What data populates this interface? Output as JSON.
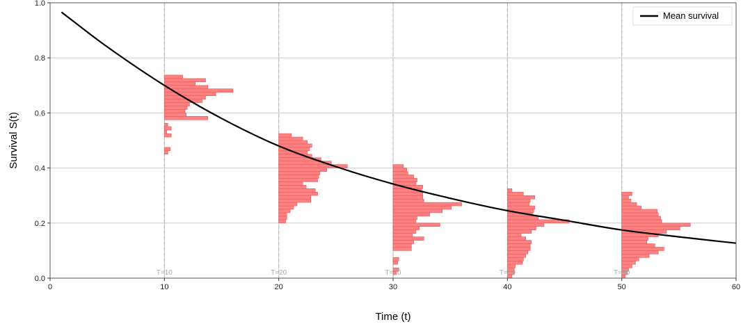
{
  "chart_data": {
    "type": "line",
    "xlabel": "Time (t)",
    "ylabel": "Survival S(t)",
    "xlim": [
      0,
      60
    ],
    "ylim": [
      0,
      1.0
    ],
    "x_ticks": [
      "0",
      "10",
      "20",
      "30",
      "40",
      "50",
      "60"
    ],
    "y_ticks": [
      "0.0",
      "0.2",
      "0.4",
      "0.6",
      "0.8",
      "1.0"
    ],
    "grid": true,
    "legend": {
      "position": "top-right",
      "entries": [
        "Mean survival"
      ]
    },
    "colors": {
      "mean_line": "#000000",
      "histogram_fill": "#ff8080",
      "histogram_edge": "#d96060",
      "grid": "#cccccc",
      "time_marker": "#bbbbbb"
    },
    "mean_survival": {
      "name": "Mean survival",
      "x": [
        1,
        5,
        10,
        15,
        20,
        25,
        30,
        35,
        40,
        45,
        50,
        55,
        60
      ],
      "y": [
        0.966,
        0.84,
        0.7,
        0.58,
        0.48,
        0.405,
        0.342,
        0.29,
        0.245,
        0.21,
        0.175,
        0.15,
        0.127
      ]
    },
    "histograms": [
      {
        "label": "T=10",
        "t": 10,
        "y_min": 0.45,
        "bin_width": 0.0125,
        "widths": [
          0.3,
          0.5,
          0,
          0,
          0,
          0.6,
          0.2,
          0.6,
          0.3,
          0,
          3.8,
          1.9,
          1.8,
          2.0,
          2.2,
          3.3,
          3.6,
          4.5,
          6.0,
          3.8,
          2.7,
          3.6,
          1.6
        ]
      },
      {
        "label": "T=20",
        "t": 20,
        "y_min": 0.2,
        "bin_width": 0.0125,
        "widths": [
          0.6,
          0.7,
          0.7,
          1.0,
          1.3,
          1.6,
          2.8,
          2.8,
          3.4,
          3.2,
          2.4,
          2.1,
          3.4,
          3.5,
          3.6,
          4.2,
          6.0,
          4.6,
          3.7,
          2.9,
          2.5,
          2.7,
          2.9,
          2.5,
          2.1,
          1.1
        ]
      },
      {
        "label": "T=30",
        "t": 30,
        "y_min": 0.0,
        "bin_width": 0.0125,
        "widths": [
          0,
          0.3,
          0.5,
          0,
          0.4,
          0.5,
          0,
          0,
          1.6,
          1.6,
          1.8,
          2.7,
          1.7,
          2.0,
          2.3,
          4.1,
          2.0,
          2.1,
          3.2,
          4.3,
          5.1,
          6.0,
          2.7,
          2.6,
          2.6,
          2.5,
          2.6,
          2.0,
          2.1,
          1.8,
          1.3,
          1.2,
          0.9
        ]
      },
      {
        "label": "T=40",
        "t": 40,
        "y_min": 0.0,
        "bin_width": 0.0125,
        "widths": [
          0.4,
          0.6,
          0.6,
          0.7,
          1.3,
          1.4,
          1.6,
          1.8,
          2.0,
          2.0,
          2.1,
          1.6,
          1.2,
          2.1,
          2.5,
          3.2,
          5.4,
          2.7,
          2.2,
          2.3,
          2.4,
          1.9,
          2.0,
          2.4,
          1.4,
          0.4
        ]
      },
      {
        "label": "T=50",
        "t": 50,
        "y_min": 0.0,
        "bin_width": 0.0125,
        "widths": [
          0.3,
          0.5,
          0.6,
          0.9,
          1.2,
          1.5,
          2.4,
          3.2,
          3.7,
          2.9,
          2.2,
          2.3,
          3.2,
          3.9,
          5.1,
          6.0,
          3.5,
          3.4,
          3.2,
          3.1,
          1.7,
          1.3,
          0.8,
          0.6,
          0.9
        ]
      }
    ]
  }
}
